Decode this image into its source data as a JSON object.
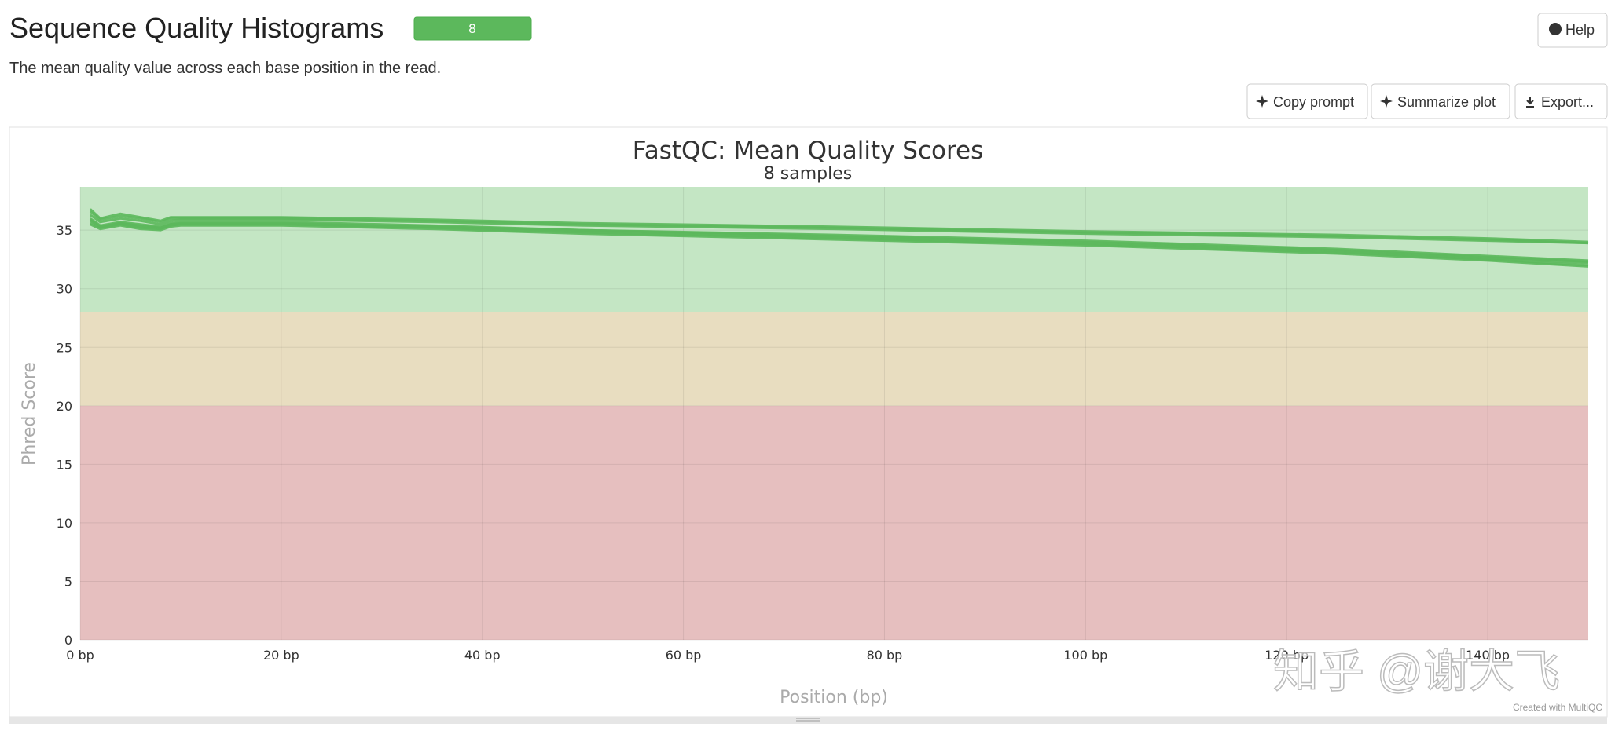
{
  "header": {
    "title": "Sequence Quality Histograms",
    "badge": "8",
    "help": "Help",
    "description": "The mean quality value across each base position in the read."
  },
  "buttons": [
    "Copy prompt",
    "Summarize plot",
    "Export..."
  ],
  "credit": "Created with MultiQC",
  "watermark": "知乎 @谢大飞",
  "chart_data": {
    "type": "line",
    "title": "FastQC: Mean Quality Scores",
    "subtitle": "8 samples",
    "x_label": "Position (bp)",
    "y_label": "Phred Score",
    "xlim": [
      0,
      150
    ],
    "ylim": [
      0,
      38.7
    ],
    "xticks": [
      {
        "value": 0,
        "label": "0 bp"
      },
      {
        "value": 20,
        "label": "20 bp"
      },
      {
        "value": 40,
        "label": "40 bp"
      },
      {
        "value": 60,
        "label": "60 bp"
      },
      {
        "value": 80,
        "label": "80 bp"
      },
      {
        "value": 100,
        "label": "100 bp"
      },
      {
        "value": 120,
        "label": "120 bp"
      },
      {
        "value": 140,
        "label": "140 bp"
      }
    ],
    "yticks": [
      0,
      5,
      10,
      15,
      20,
      25,
      30,
      35
    ],
    "grid": true,
    "bands": [
      {
        "from": 0,
        "to": 20,
        "color": "#e6bfbf"
      },
      {
        "from": 20,
        "to": 28,
        "color": "#e8ddc0"
      },
      {
        "from": 28,
        "to": 38.7,
        "color": "#c4e6c4"
      }
    ],
    "x": [
      1,
      2,
      4,
      6,
      8,
      9,
      10,
      20,
      35,
      50,
      75,
      100,
      125,
      140,
      150
    ],
    "series": [
      {
        "color": "#5cb85c",
        "values": [
          36.8,
          36.0,
          36.4,
          36.1,
          35.8,
          36.1,
          36.1,
          36.1,
          35.9,
          35.6,
          35.3,
          34.9,
          34.6,
          34.3,
          34.0
        ]
      },
      {
        "color": "#5cb85c",
        "values": [
          36.6,
          35.9,
          36.2,
          36.0,
          35.7,
          36.0,
          36.0,
          36.0,
          35.8,
          35.5,
          35.2,
          34.8,
          34.5,
          34.2,
          33.9
        ]
      },
      {
        "color": "#5cb85c",
        "values": [
          36.3,
          35.7,
          36.0,
          35.8,
          35.5,
          35.8,
          35.9,
          35.9,
          35.7,
          35.4,
          35.1,
          34.7,
          34.4,
          34.1,
          33.9
        ]
      },
      {
        "color": "#5cb85c",
        "values": [
          36.0,
          35.4,
          35.7,
          35.5,
          35.3,
          35.6,
          35.7,
          35.7,
          35.4,
          35.0,
          34.5,
          34.0,
          33.3,
          32.7,
          32.3
        ]
      },
      {
        "color": "#5cb85c",
        "values": [
          35.8,
          35.3,
          35.6,
          35.4,
          35.2,
          35.5,
          35.6,
          35.6,
          35.3,
          34.9,
          34.4,
          33.9,
          33.2,
          32.6,
          32.2
        ]
      },
      {
        "color": "#5cb85c",
        "values": [
          35.6,
          35.2,
          35.5,
          35.2,
          35.1,
          35.4,
          35.5,
          35.5,
          35.2,
          34.8,
          34.3,
          33.8,
          33.1,
          32.5,
          32.0
        ]
      },
      {
        "color": "#5cb85c",
        "values": [
          35.5,
          35.1,
          35.4,
          35.1,
          35.0,
          35.3,
          35.4,
          35.4,
          35.1,
          34.7,
          34.2,
          33.7,
          33.0,
          32.4,
          31.9
        ]
      },
      {
        "color": "#5cb85c",
        "values": [
          35.9,
          35.3,
          35.6,
          35.3,
          35.2,
          35.5,
          35.5,
          35.5,
          35.3,
          35.0,
          34.6,
          34.1,
          33.4,
          32.8,
          32.4
        ]
      }
    ]
  }
}
